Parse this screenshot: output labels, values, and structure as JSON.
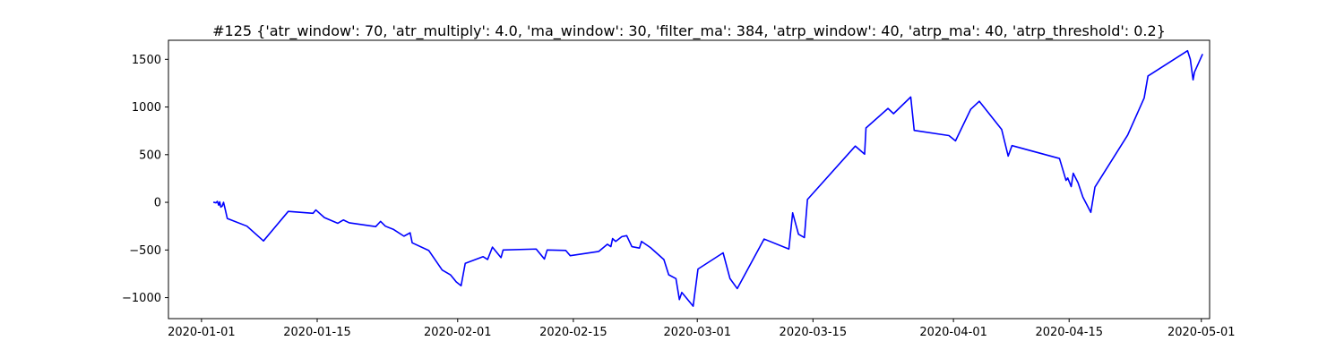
{
  "chart_data": {
    "type": "line",
    "title": "#125 {'atr_window': 70, 'atr_multiply': 4.0, 'ma_window': 30, 'filter_ma': 384, 'atrp_window': 40, 'atrp_ma': 40, 'atrp_threshold': 0.2}",
    "xlabel": "",
    "ylabel": "",
    "x_axis_type": "date",
    "xlim": [
      "2019-12-28",
      "2020-05-02"
    ],
    "ylim": [
      -1220,
      1700
    ],
    "xticks": [
      "2020-01-01",
      "2020-01-15",
      "2020-02-01",
      "2020-02-15",
      "2020-03-01",
      "2020-03-15",
      "2020-04-01",
      "2020-04-15",
      "2020-05-01"
    ],
    "yticks": [
      -1000,
      -500,
      0,
      500,
      1000,
      1500
    ],
    "grid": false,
    "series": [
      {
        "color": "#0000ff",
        "points": [
          [
            "2020-01-02 12:00",
            0
          ],
          [
            "2020-01-02 18:00",
            -5
          ],
          [
            "2020-01-02 22:00",
            10
          ],
          [
            "2020-01-03 02:00",
            -30
          ],
          [
            "2020-01-03 05:00",
            5
          ],
          [
            "2020-01-03 08:00",
            -50
          ],
          [
            "2020-01-03 12:00",
            -40
          ],
          [
            "2020-01-03 16:00",
            0
          ],
          [
            "2020-01-03 20:00",
            -60
          ],
          [
            "2020-01-04 03:00",
            -170
          ],
          [
            "2020-01-06 12:00",
            -250
          ],
          [
            "2020-01-08 12:00",
            -405
          ],
          [
            "2020-01-11 12:00",
            -95
          ],
          [
            "2020-01-14 12:00",
            -115
          ],
          [
            "2020-01-14 20:00",
            -80
          ],
          [
            "2020-01-15 21:00",
            -160
          ],
          [
            "2020-01-17 12:00",
            -220
          ],
          [
            "2020-01-18 04:00",
            -185
          ],
          [
            "2020-01-18 21:00",
            -215
          ],
          [
            "2020-01-22 02:00",
            -255
          ],
          [
            "2020-01-22 16:00",
            -200
          ],
          [
            "2020-01-23 06:00",
            -250
          ],
          [
            "2020-01-24 06:00",
            -285
          ],
          [
            "2020-01-25 12:00",
            -355
          ],
          [
            "2020-01-26 06:00",
            -320
          ],
          [
            "2020-01-26 12:00",
            -425
          ],
          [
            "2020-01-28 12:00",
            -505
          ],
          [
            "2020-01-30 03:00",
            -710
          ],
          [
            "2020-01-31 03:00",
            -760
          ],
          [
            "2020-01-31 20:00",
            -835
          ],
          [
            "2020-02-01 10:00",
            -875
          ],
          [
            "2020-02-01 22:00",
            -640
          ],
          [
            "2020-02-04 02:00",
            -570
          ],
          [
            "2020-02-04 15:00",
            -600
          ],
          [
            "2020-02-05 05:00",
            -470
          ],
          [
            "2020-02-06 06:00",
            -580
          ],
          [
            "2020-02-06 12:00",
            -500
          ],
          [
            "2020-02-10 12:00",
            -490
          ],
          [
            "2020-02-11 12:00",
            -595
          ],
          [
            "2020-02-11 20:00",
            -500
          ],
          [
            "2020-02-14 02:00",
            -505
          ],
          [
            "2020-02-14 15:00",
            -560
          ],
          [
            "2020-02-18 02:00",
            -515
          ],
          [
            "2020-02-19 03:00",
            -440
          ],
          [
            "2020-02-19 13:00",
            -465
          ],
          [
            "2020-02-19 18:00",
            -380
          ],
          [
            "2020-02-20 03:00",
            -410
          ],
          [
            "2020-02-20 21:00",
            -360
          ],
          [
            "2020-02-21 11:00",
            -350
          ],
          [
            "2020-02-22 02:00",
            -465
          ],
          [
            "2020-02-23 00:00",
            -480
          ],
          [
            "2020-02-23 06:00",
            -410
          ],
          [
            "2020-02-24 08:00",
            -475
          ],
          [
            "2020-02-25 23:00",
            -600
          ],
          [
            "2020-02-26 13:00",
            -760
          ],
          [
            "2020-02-27 10:00",
            -800
          ],
          [
            "2020-02-27 20:00",
            -1020
          ],
          [
            "2020-02-28 03:00",
            -945
          ],
          [
            "2020-02-29 12:00",
            -1090
          ],
          [
            "2020-03-01 02:00",
            -700
          ],
          [
            "2020-03-04 03:00",
            -530
          ],
          [
            "2020-03-04 23:00",
            -800
          ],
          [
            "2020-03-05 20:00",
            -905
          ],
          [
            "2020-03-09 02:00",
            -385
          ],
          [
            "2020-03-12 02:00",
            -490
          ],
          [
            "2020-03-12 13:00",
            -110
          ],
          [
            "2020-03-13 06:00",
            -335
          ],
          [
            "2020-03-13 23:00",
            -370
          ],
          [
            "2020-03-14 08:00",
            30
          ],
          [
            "2020-03-20 03:00",
            590
          ],
          [
            "2020-03-21 06:00",
            505
          ],
          [
            "2020-03-21 10:00",
            780
          ],
          [
            "2020-03-24 02:00",
            985
          ],
          [
            "2020-03-24 18:00",
            930
          ],
          [
            "2020-03-26 20:00",
            1105
          ],
          [
            "2020-03-27 06:00",
            755
          ],
          [
            "2020-03-31 11:00",
            700
          ],
          [
            "2020-04-01 06:00",
            645
          ],
          [
            "2020-04-03 02:00",
            975
          ],
          [
            "2020-04-04 03:00",
            1060
          ],
          [
            "2020-04-06 20:00",
            765
          ],
          [
            "2020-04-07 15:00",
            485
          ],
          [
            "2020-04-08 02:00",
            595
          ],
          [
            "2020-04-13 20:00",
            460
          ],
          [
            "2020-04-14 15:00",
            230
          ],
          [
            "2020-04-14 20:00",
            255
          ],
          [
            "2020-04-15 06:00",
            165
          ],
          [
            "2020-04-15 12:00",
            305
          ],
          [
            "2020-04-16 02:00",
            205
          ],
          [
            "2020-04-16 16:00",
            55
          ],
          [
            "2020-04-17 15:00",
            -105
          ],
          [
            "2020-04-18 03:00",
            160
          ],
          [
            "2020-04-22 02:00",
            705
          ],
          [
            "2020-04-24 02:00",
            1095
          ],
          [
            "2020-04-24 13:00",
            1325
          ],
          [
            "2020-04-29 08:00",
            1590
          ],
          [
            "2020-04-29 16:00",
            1500
          ],
          [
            "2020-04-30 00:00",
            1285
          ],
          [
            "2020-04-30 04:00",
            1365
          ],
          [
            "2020-05-01 03:00",
            1550
          ]
        ]
      }
    ]
  }
}
